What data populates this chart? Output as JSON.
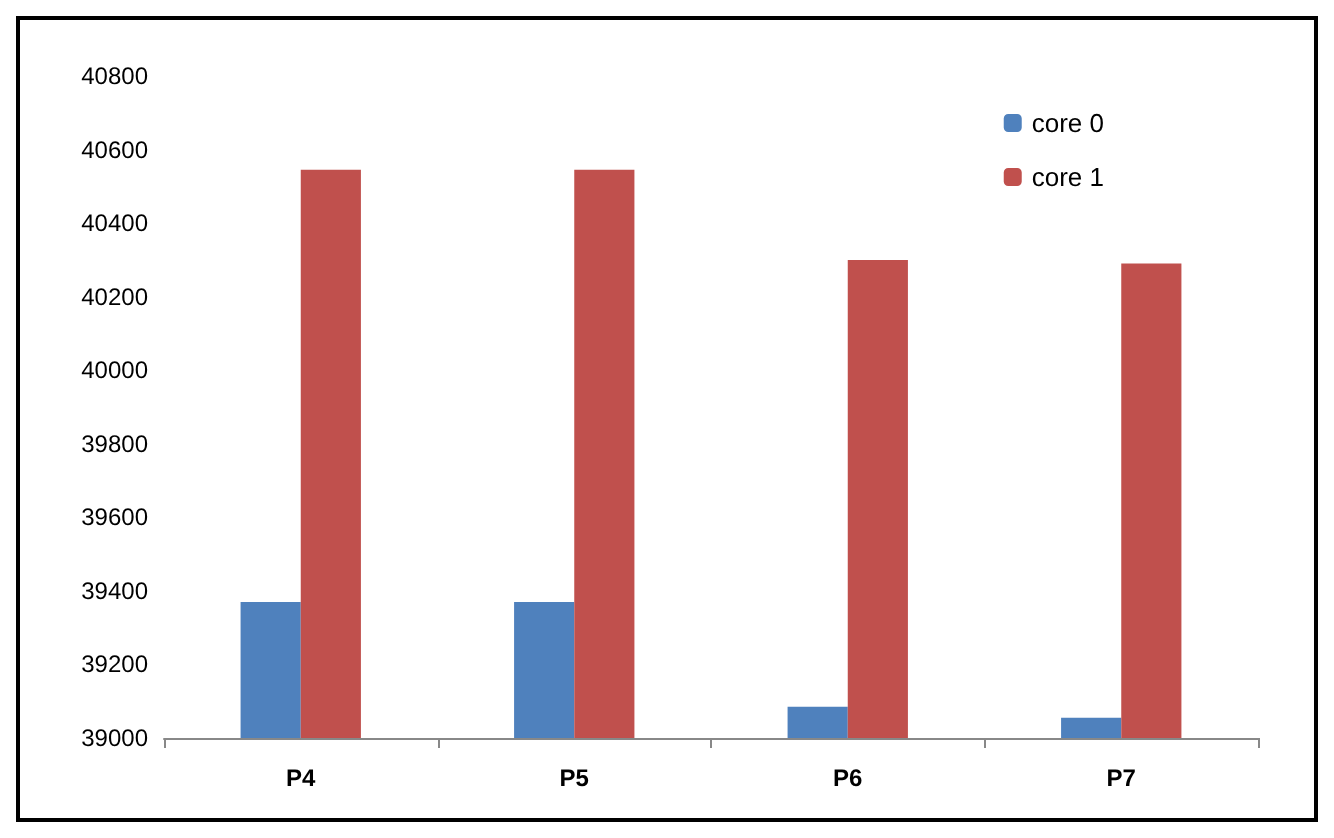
{
  "chart_data": {
    "type": "bar",
    "categories": [
      "P4",
      "P5",
      "P6",
      "P7"
    ],
    "series": [
      {
        "name": "core 0",
        "color": "#4f81bd",
        "values": [
          39370,
          39370,
          39085,
          39055
        ]
      },
      {
        "name": "core 1",
        "color": "#c0504d",
        "values": [
          40545,
          40545,
          40300,
          40290
        ]
      }
    ],
    "ylim": [
      39000,
      40800
    ],
    "yticks": [
      39000,
      39200,
      39400,
      39600,
      39800,
      40000,
      40200,
      40400,
      40600,
      40800
    ],
    "grid": false,
    "legend": "top right"
  }
}
